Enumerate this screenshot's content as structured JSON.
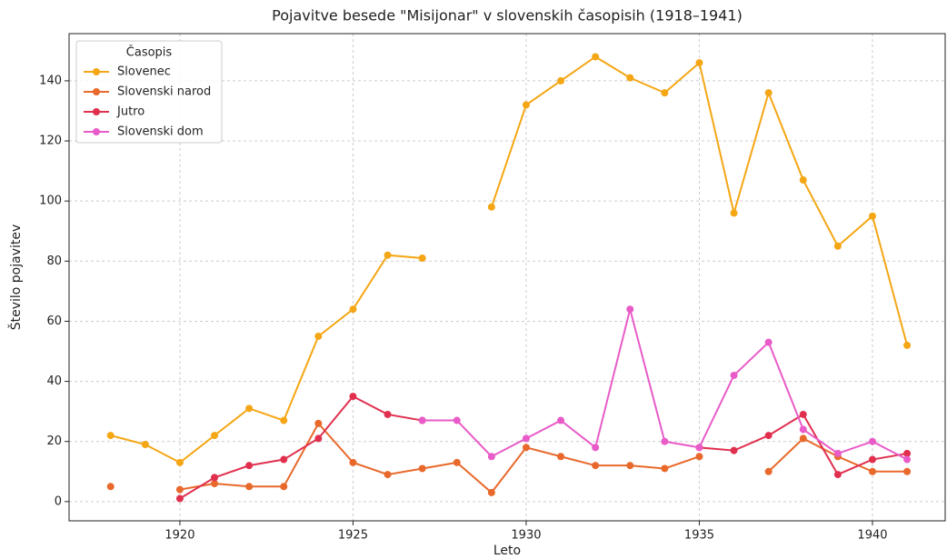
{
  "chart_data": {
    "type": "line",
    "title": "Pojavitve besede \"Misijonar\" v slovenskih časopisih (1918–1941)",
    "x_label": "Leto",
    "y_label": "Število pojavitev",
    "legend_title": "Časopis",
    "legend": "upper left",
    "grid": true,
    "x": [
      1918,
      1919,
      1920,
      1921,
      1922,
      1923,
      1924,
      1925,
      1926,
      1927,
      1928,
      1929,
      1930,
      1931,
      1932,
      1933,
      1934,
      1935,
      1936,
      1937,
      1938,
      1939,
      1940,
      1941
    ],
    "series": [
      {
        "name": "Slovenec",
        "color": "#f5a615",
        "values": [
          22,
          19,
          13,
          22,
          31,
          27,
          55,
          64,
          82,
          81,
          null,
          98,
          132,
          140,
          148,
          141,
          136,
          146,
          96,
          136,
          107,
          85,
          95,
          52
        ]
      },
      {
        "name": "Slovenski narod",
        "color": "#e8692b",
        "values": [
          5,
          null,
          4,
          6,
          5,
          5,
          26,
          13,
          9,
          11,
          13,
          3,
          18,
          15,
          12,
          12,
          11,
          15,
          null,
          10,
          21,
          15,
          10,
          10
        ]
      },
      {
        "name": "Jutro",
        "color": "#e0304e",
        "values": [
          null,
          null,
          1,
          8,
          12,
          14,
          21,
          35,
          29,
          27,
          null,
          null,
          null,
          null,
          null,
          null,
          null,
          18,
          17,
          22,
          29,
          9,
          14,
          16
        ]
      },
      {
        "name": "Slovenski dom",
        "color": "#e85bc8",
        "values": [
          null,
          null,
          null,
          null,
          null,
          null,
          null,
          null,
          null,
          27,
          27,
          15,
          21,
          27,
          18,
          64,
          20,
          18,
          42,
          53,
          24,
          16,
          20,
          14
        ]
      }
    ],
    "xlim": [
      1916.8,
      1942.1
    ],
    "xticks": [
      1920,
      1925,
      1930,
      1935,
      1940
    ],
    "ylim": [
      -6.4,
      155.7
    ],
    "yticks": [
      0,
      20,
      40,
      60,
      80,
      100,
      120,
      140
    ]
  }
}
